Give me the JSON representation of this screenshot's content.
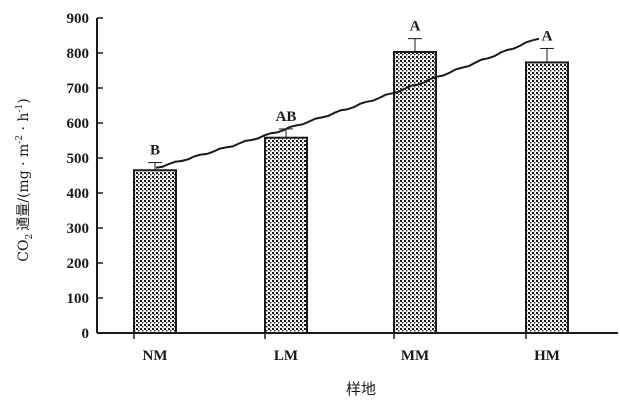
{
  "chart_data": {
    "type": "bar",
    "categories": [
      "NM",
      "LM",
      "MM",
      "HM"
    ],
    "values": [
      465,
      558,
      803,
      773
    ],
    "errors": [
      22,
      25,
      38,
      40
    ],
    "significance": [
      "B",
      "AB",
      "A",
      "A"
    ],
    "trend_line": {
      "start": 472,
      "end": 843
    },
    "ylim": [
      0,
      900
    ],
    "yticks": [
      0,
      100,
      200,
      300,
      400,
      500,
      600,
      700,
      800,
      900
    ],
    "xlabel": "样地",
    "ylabel": {
      "co": "CO",
      "sub2": "2",
      "zh": "通量",
      "unit_open": "/(mg · m",
      "sup_m": "-2",
      "unit_mid": " · h",
      "sup_h": "-1",
      "unit_close": ")"
    },
    "grid": false,
    "legend": "none",
    "colors": {
      "bar_border": "#1a1a1a",
      "bar_pattern": "#1a1a1a",
      "axis": "#1a1a1a",
      "line": "#1a1a1a"
    }
  }
}
